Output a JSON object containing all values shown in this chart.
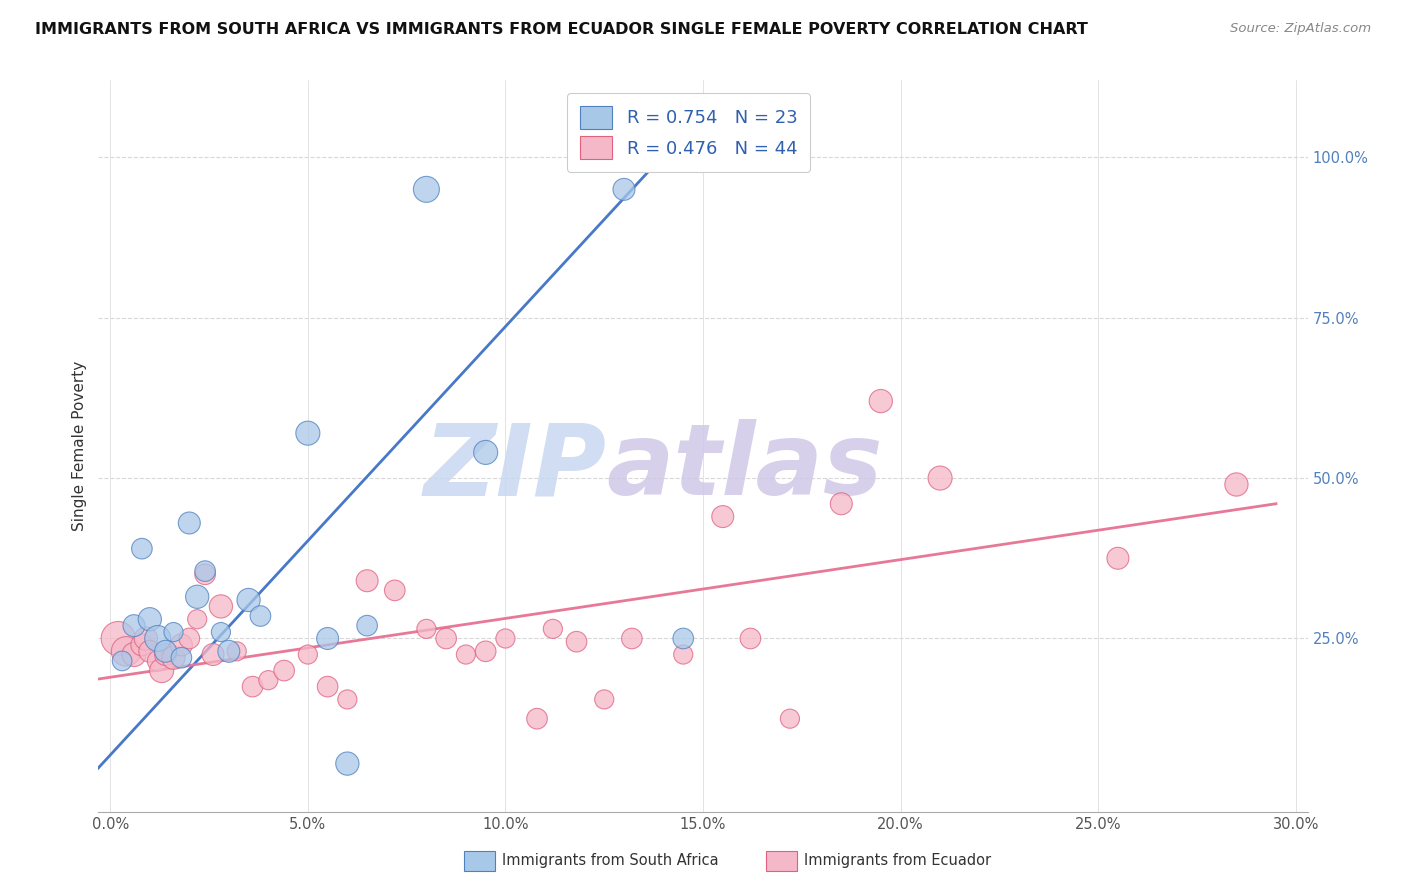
{
  "title": "IMMIGRANTS FROM SOUTH AFRICA VS IMMIGRANTS FROM ECUADOR SINGLE FEMALE POVERTY CORRELATION CHART",
  "source": "Source: ZipAtlas.com",
  "ylabel": "Single Female Poverty",
  "legend_blue_r": "R = 0.754",
  "legend_blue_n": "N = 23",
  "legend_pink_r": "R = 0.476",
  "legend_pink_n": "N = 44",
  "legend_label_blue": "Immigrants from South Africa",
  "legend_label_pink": "Immigrants from Ecuador",
  "blue_scatter_x": [
    0.003,
    0.006,
    0.008,
    0.01,
    0.012,
    0.014,
    0.016,
    0.018,
    0.02,
    0.022,
    0.024,
    0.028,
    0.03,
    0.035,
    0.038,
    0.05,
    0.055,
    0.06,
    0.065,
    0.08,
    0.095,
    0.13,
    0.145
  ],
  "blue_scatter_y": [
    0.215,
    0.27,
    0.39,
    0.28,
    0.25,
    0.23,
    0.26,
    0.22,
    0.43,
    0.315,
    0.355,
    0.26,
    0.23,
    0.31,
    0.285,
    0.57,
    0.25,
    0.055,
    0.27,
    0.95,
    0.54,
    0.95,
    0.25
  ],
  "blue_scatter_sizes": [
    200,
    250,
    220,
    280,
    350,
    250,
    190,
    220,
    250,
    280,
    220,
    190,
    250,
    280,
    220,
    300,
    250,
    280,
    220,
    350,
    300,
    250,
    220
  ],
  "pink_scatter_x": [
    0.002,
    0.004,
    0.006,
    0.008,
    0.009,
    0.01,
    0.012,
    0.013,
    0.014,
    0.016,
    0.018,
    0.02,
    0.022,
    0.024,
    0.026,
    0.028,
    0.032,
    0.036,
    0.04,
    0.044,
    0.05,
    0.055,
    0.06,
    0.065,
    0.072,
    0.08,
    0.085,
    0.09,
    0.095,
    0.1,
    0.108,
    0.112,
    0.118,
    0.125,
    0.132,
    0.145,
    0.155,
    0.162,
    0.172,
    0.185,
    0.195,
    0.21,
    0.255,
    0.285
  ],
  "pink_scatter_y": [
    0.25,
    0.23,
    0.225,
    0.24,
    0.25,
    0.23,
    0.215,
    0.2,
    0.225,
    0.22,
    0.24,
    0.25,
    0.28,
    0.35,
    0.225,
    0.3,
    0.23,
    0.175,
    0.185,
    0.2,
    0.225,
    0.175,
    0.155,
    0.34,
    0.325,
    0.265,
    0.25,
    0.225,
    0.23,
    0.25,
    0.125,
    0.265,
    0.245,
    0.155,
    0.25,
    0.225,
    0.44,
    0.25,
    0.125,
    0.46,
    0.62,
    0.5,
    0.375,
    0.49
  ],
  "pink_scatter_sizes": [
    600,
    450,
    300,
    250,
    280,
    250,
    220,
    300,
    250,
    280,
    250,
    220,
    190,
    220,
    250,
    280,
    190,
    220,
    190,
    220,
    190,
    220,
    190,
    250,
    220,
    190,
    220,
    190,
    220,
    190,
    220,
    190,
    220,
    190,
    220,
    190,
    250,
    220,
    190,
    250,
    280,
    300,
    250,
    280
  ],
  "blue_line_x": [
    -0.005,
    0.15
  ],
  "blue_line_y": [
    0.035,
    1.07
  ],
  "pink_line_x": [
    -0.005,
    0.295
  ],
  "pink_line_y": [
    0.185,
    0.46
  ],
  "xlim": [
    -0.003,
    0.303
  ],
  "ylim": [
    -0.02,
    1.12
  ],
  "ytick_vals": [
    0.25,
    0.5,
    0.75,
    1.0
  ],
  "ytick_labels": [
    "25.0%",
    "50.0%",
    "75.0%",
    "100.0%"
  ],
  "xtick_vals": [
    0.0,
    0.05,
    0.1,
    0.15,
    0.2,
    0.25,
    0.3
  ],
  "xtick_labels": [
    "0.0%",
    "5.0%",
    "10.0%",
    "15.0%",
    "20.0%",
    "25.0%",
    "30.0%"
  ],
  "blue_color": "#a8c8e8",
  "pink_color": "#f5b8c8",
  "blue_edge_color": "#5080c0",
  "pink_edge_color": "#e06080",
  "blue_line_color": "#4878c8",
  "pink_line_color": "#e87898",
  "watermark_zip_color": "#c8d8f0",
  "watermark_atlas_color": "#d0c8e8",
  "background_color": "#ffffff",
  "grid_color": "#d8d8d8"
}
